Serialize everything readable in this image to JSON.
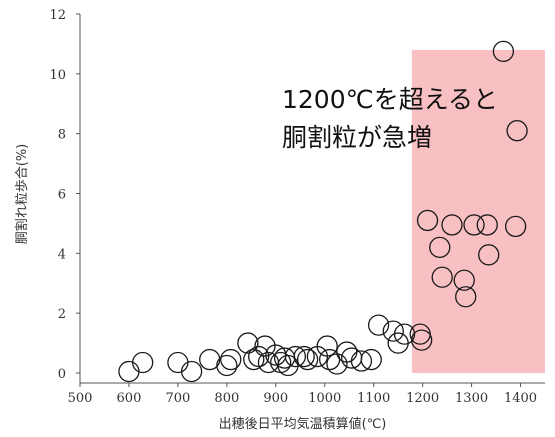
{
  "chart_data": {
    "type": "scatter",
    "xlabel": "出穂後日平均気温積算値(℃)",
    "ylabel": "胴割れ粒歩合(%)",
    "xlim": [
      500,
      1450
    ],
    "ylim": [
      0,
      12
    ],
    "xticks": [
      500,
      600,
      700,
      800,
      900,
      1000,
      1100,
      1200,
      1300,
      1400
    ],
    "yticks": [
      0,
      2,
      4,
      6,
      8,
      10,
      12
    ],
    "grid": false,
    "highlight": {
      "x_from": 1178,
      "x_to": 1450,
      "y_from": 0,
      "y_to": 10.8,
      "color": "#f7b9bd"
    },
    "annotation": [
      "1200℃を超えると",
      "胴割粒が急増"
    ],
    "marker_color": "#1a1a1a",
    "points": [
      {
        "x": 600,
        "y": 0.05
      },
      {
        "x": 628,
        "y": 0.35
      },
      {
        "x": 700,
        "y": 0.35
      },
      {
        "x": 728,
        "y": 0.05
      },
      {
        "x": 765,
        "y": 0.45
      },
      {
        "x": 800,
        "y": 0.25
      },
      {
        "x": 808,
        "y": 0.45
      },
      {
        "x": 843,
        "y": 1.0
      },
      {
        "x": 855,
        "y": 0.45
      },
      {
        "x": 865,
        "y": 0.55
      },
      {
        "x": 878,
        "y": 0.9
      },
      {
        "x": 885,
        "y": 0.35
      },
      {
        "x": 900,
        "y": 0.6
      },
      {
        "x": 910,
        "y": 0.35
      },
      {
        "x": 918,
        "y": 0.5
      },
      {
        "x": 925,
        "y": 0.25
      },
      {
        "x": 940,
        "y": 0.55
      },
      {
        "x": 958,
        "y": 0.55
      },
      {
        "x": 965,
        "y": 0.45
      },
      {
        "x": 985,
        "y": 0.55
      },
      {
        "x": 1005,
        "y": 0.9
      },
      {
        "x": 1010,
        "y": 0.45
      },
      {
        "x": 1025,
        "y": 0.3
      },
      {
        "x": 1045,
        "y": 0.7
      },
      {
        "x": 1055,
        "y": 0.5
      },
      {
        "x": 1075,
        "y": 0.4
      },
      {
        "x": 1095,
        "y": 0.45
      },
      {
        "x": 1110,
        "y": 1.6
      },
      {
        "x": 1140,
        "y": 1.4
      },
      {
        "x": 1150,
        "y": 1.0
      },
      {
        "x": 1163,
        "y": 1.3
      },
      {
        "x": 1195,
        "y": 1.3
      },
      {
        "x": 1198,
        "y": 1.1
      },
      {
        "x": 1210,
        "y": 5.1
      },
      {
        "x": 1235,
        "y": 4.2
      },
      {
        "x": 1240,
        "y": 3.2
      },
      {
        "x": 1260,
        "y": 4.95
      },
      {
        "x": 1285,
        "y": 3.1
      },
      {
        "x": 1288,
        "y": 2.55
      },
      {
        "x": 1305,
        "y": 4.95
      },
      {
        "x": 1332,
        "y": 4.95
      },
      {
        "x": 1335,
        "y": 3.95
      },
      {
        "x": 1365,
        "y": 10.75
      },
      {
        "x": 1390,
        "y": 4.9
      },
      {
        "x": 1393,
        "y": 8.1
      }
    ]
  }
}
